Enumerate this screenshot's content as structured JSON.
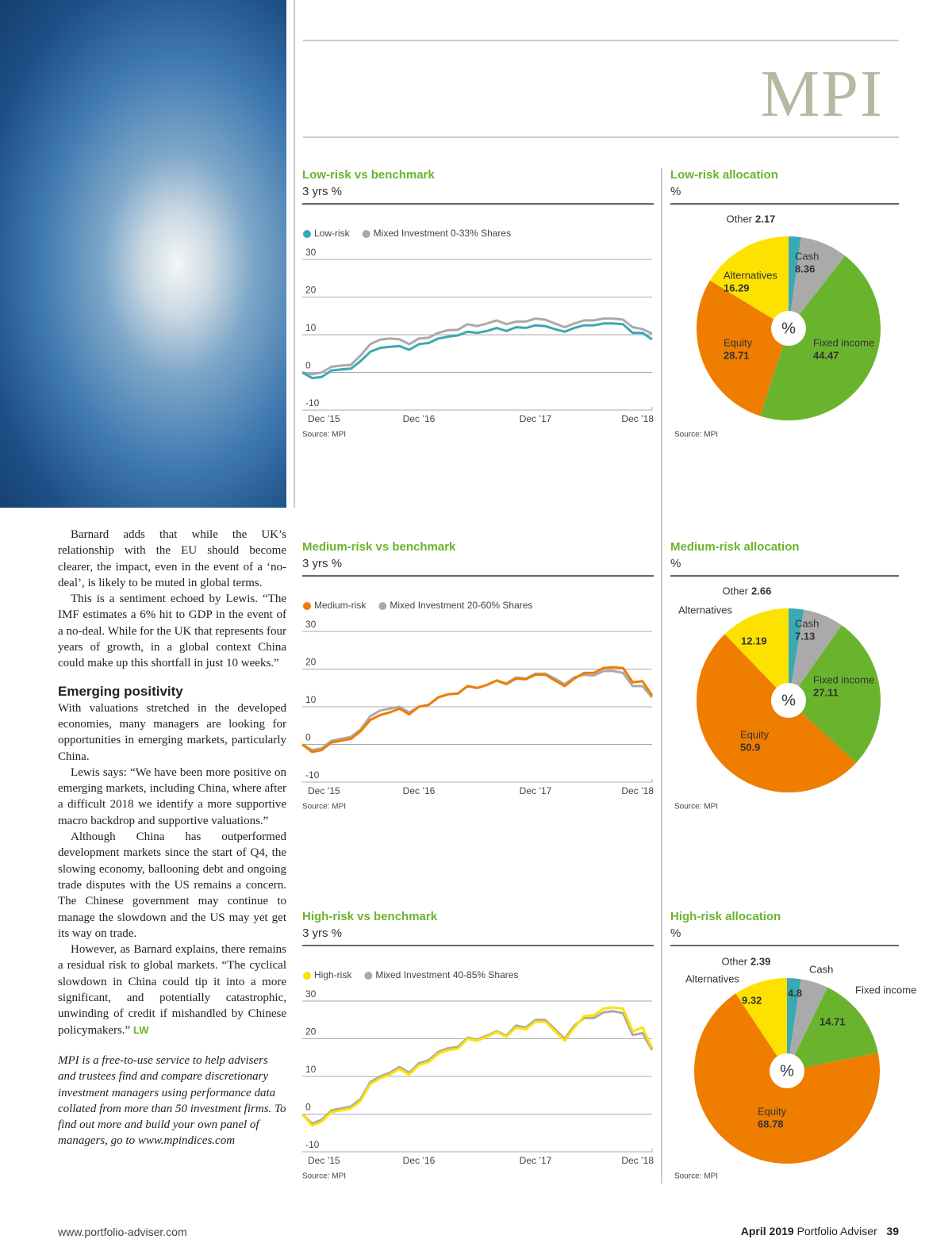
{
  "logo": "MPI",
  "article": {
    "paragraphs_before": [
      "Barnard adds that while the UK’s relationship with the EU should become clearer, the impact, even in the event of a ‘no-deal’, is likely to be muted in global terms.",
      "This is a sentiment echoed by Lewis. “The IMF estimates a 6% hit to GDP in the event of a no-deal. While for the UK that represents four years of growth, in a global context China could make up this shortfall in just 10 weeks.”"
    ],
    "heading": "Emerging positivity",
    "paragraphs_after": [
      "With valuations stretched in the developed economies, many managers are looking for opportunities in emerging markets, particularly China.",
      "Lewis says: “We have been more positive on emerging markets, including China, where after a difficult 2018 we identify a more supportive macro backdrop and supportive valuations.”",
      "Although China has outperformed development markets since the start of Q4, the slowing economy, ballooning debt and ongoing trade disputes with the US remains a concern. The Chinese government may continue to manage the slowdown and the US may yet get its way on trade.",
      "However, as Barnard explains, there remains a residual risk to global markets. “The cyclical slowdown in China could tip it into a more significant, and potentially catastrophic, unwinding of credit if mishandled by Chinese policymakers.”"
    ],
    "sign_off": "LW",
    "note": "MPI is a free-to-use service to help advisers and trustees find and compare discretionary investment managers using performance data collated from more than 50 investment firms. To find out more and build your own panel of managers, go to www.mpindices.com"
  },
  "footer": {
    "url": "www.portfolio-adviser.com",
    "date": "April 2019",
    "publication": "Portfolio Adviser",
    "page": 39
  },
  "chart_data": [
    {
      "type": "line",
      "title": "Low-risk vs benchmark",
      "subtitle": "3 yrs %",
      "source": "Source: MPI",
      "categories": [
        "Dec ’15",
        null,
        null,
        null,
        null,
        null,
        null,
        null,
        null,
        null,
        null,
        null,
        "Dec ’16",
        null,
        null,
        null,
        null,
        null,
        null,
        null,
        null,
        null,
        null,
        null,
        "Dec ’17",
        null,
        null,
        null,
        null,
        null,
        null,
        null,
        null,
        null,
        null,
        null,
        "Dec ’18"
      ],
      "ylim": [
        -10,
        30
      ],
      "yticks": [
        -10,
        0,
        10,
        20,
        30
      ],
      "series": [
        {
          "name": "Low-risk",
          "color": "#3aa9b4",
          "values": [
            0,
            -1.5,
            -1.2,
            0.5,
            0.8,
            1,
            3,
            5.5,
            6.5,
            6.8,
            7,
            6,
            7.5,
            7.8,
            9,
            9.5,
            9.8,
            10.8,
            10.5,
            11,
            11.8,
            11,
            12,
            11.8,
            12.5,
            12.3,
            11.5,
            10.8,
            11.8,
            12.5,
            12.5,
            13,
            13,
            12.8,
            10.5,
            10.5,
            8.8
          ]
        },
        {
          "name": "Mixed Investment 0-33% Shares",
          "color": "#aaaaaa",
          "values": [
            0,
            -0.5,
            0,
            1.5,
            1.8,
            2,
            4.5,
            7.5,
            8.7,
            9,
            8.8,
            7.5,
            9,
            9.2,
            10.5,
            11.2,
            11.3,
            12.8,
            12.3,
            13,
            13.8,
            12.8,
            13.5,
            13.5,
            14.3,
            14,
            13,
            12,
            13,
            13.8,
            13.8,
            14.3,
            14.3,
            14,
            12,
            11.5,
            10.3
          ]
        }
      ]
    },
    {
      "type": "pie",
      "title": "Low-risk allocation",
      "subtitle": "%",
      "center_label": "%",
      "source": "Source: MPI",
      "categories": [
        "Other",
        "Cash",
        "Fixed income",
        "Equity",
        "Alternatives"
      ],
      "values": [
        2.17,
        8.36,
        44.47,
        28.71,
        16.29
      ],
      "colors": [
        "#3aa9b4",
        "#aaaaaa",
        "#6ab42d",
        "#ef7d00",
        "#fde100"
      ]
    },
    {
      "type": "line",
      "title": "Medium-risk vs benchmark",
      "subtitle": "3 yrs %",
      "source": "Source: MPI",
      "categories": [
        "Dec ’15",
        null,
        null,
        null,
        null,
        null,
        null,
        null,
        null,
        null,
        null,
        null,
        "Dec ’16",
        null,
        null,
        null,
        null,
        null,
        null,
        null,
        null,
        null,
        null,
        null,
        "Dec ’17",
        null,
        null,
        null,
        null,
        null,
        null,
        null,
        null,
        null,
        null,
        null,
        "Dec ’18"
      ],
      "ylim": [
        -10,
        30
      ],
      "yticks": [
        -10,
        0,
        10,
        20,
        30
      ],
      "series": [
        {
          "name": "Medium-risk",
          "color": "#ef7d00",
          "values": [
            0,
            -2,
            -1.5,
            0.5,
            1,
            1.5,
            3.5,
            6.5,
            7.8,
            8.5,
            9.5,
            8,
            10,
            10.5,
            12.5,
            13.3,
            13.5,
            15.5,
            15,
            15.8,
            17,
            16,
            17.5,
            17.3,
            18.5,
            18.5,
            17,
            15.5,
            17.5,
            19,
            19,
            20.3,
            20.5,
            20.3,
            16.5,
            16.8,
            13
          ]
        },
        {
          "name": "Mixed Investment 20-60% Shares",
          "color": "#aaaaaa",
          "values": [
            0,
            -1.5,
            -1,
            1,
            1.5,
            2,
            4,
            7.5,
            9,
            9.5,
            10,
            8.5,
            10,
            10.5,
            12.5,
            13.3,
            13.5,
            15.5,
            15,
            15.8,
            17,
            16.2,
            17.8,
            17.5,
            18.8,
            18.8,
            17.5,
            16,
            17.8,
            18.5,
            18.3,
            19.5,
            19.5,
            19,
            15.5,
            15.5,
            12.5
          ]
        }
      ]
    },
    {
      "type": "pie",
      "title": "Medium-risk allocation",
      "subtitle": "%",
      "center_label": "%",
      "source": "Source: MPI",
      "categories": [
        "Other",
        "Cash",
        "Fixed income",
        "Equity",
        "Alternatives"
      ],
      "values": [
        2.66,
        7.13,
        27.11,
        50.9,
        12.19
      ],
      "colors": [
        "#3aa9b4",
        "#aaaaaa",
        "#6ab42d",
        "#ef7d00",
        "#fde100"
      ]
    },
    {
      "type": "line",
      "title": "High-risk vs benchmark",
      "subtitle": "3 yrs %",
      "source": "Source: MPI",
      "categories": [
        "Dec ’15",
        null,
        null,
        null,
        null,
        null,
        null,
        null,
        null,
        null,
        null,
        null,
        "Dec ’16",
        null,
        null,
        null,
        null,
        null,
        null,
        null,
        null,
        null,
        null,
        null,
        "Dec ’17",
        null,
        null,
        null,
        null,
        null,
        null,
        null,
        null,
        null,
        null,
        null,
        "Dec ’18"
      ],
      "ylim": [
        -10,
        30
      ],
      "yticks": [
        -10,
        0,
        10,
        20,
        30
      ],
      "series": [
        {
          "name": "High-risk",
          "color": "#fde100",
          "values": [
            0,
            -3,
            -2,
            0.5,
            1,
            1.5,
            3.5,
            8,
            9.5,
            10.5,
            12,
            10.5,
            13,
            13.8,
            16,
            17,
            17.3,
            20,
            19.5,
            20.5,
            21.8,
            20.5,
            23,
            22.5,
            24.5,
            24.5,
            22,
            19.5,
            23,
            26,
            26.2,
            28,
            28.3,
            28,
            22,
            23,
            17.5
          ]
        },
        {
          "name": "Mixed Investment 40-85% Shares",
          "color": "#aaaaaa",
          "values": [
            0,
            -2.5,
            -1.5,
            1,
            1.5,
            2,
            4,
            8.5,
            10,
            11,
            12.5,
            11,
            13.5,
            14.3,
            16.5,
            17.5,
            17.8,
            20.3,
            19.8,
            20.8,
            22,
            20.8,
            23.5,
            23,
            25,
            25,
            22.5,
            20,
            23.5,
            25.5,
            25.5,
            27,
            27.3,
            26.8,
            21,
            21.5,
            17
          ]
        }
      ]
    },
    {
      "type": "pie",
      "title": "High-risk allocation",
      "subtitle": "%",
      "center_label": "%",
      "source": "Source: MPI",
      "categories": [
        "Other",
        "Cash",
        "Fixed income",
        "Equity",
        "Alternatives"
      ],
      "values": [
        2.39,
        4.8,
        14.71,
        68.78,
        9.32
      ],
      "colors": [
        "#3aa9b4",
        "#aaaaaa",
        "#6ab42d",
        "#ef7d00",
        "#fde100"
      ]
    }
  ]
}
